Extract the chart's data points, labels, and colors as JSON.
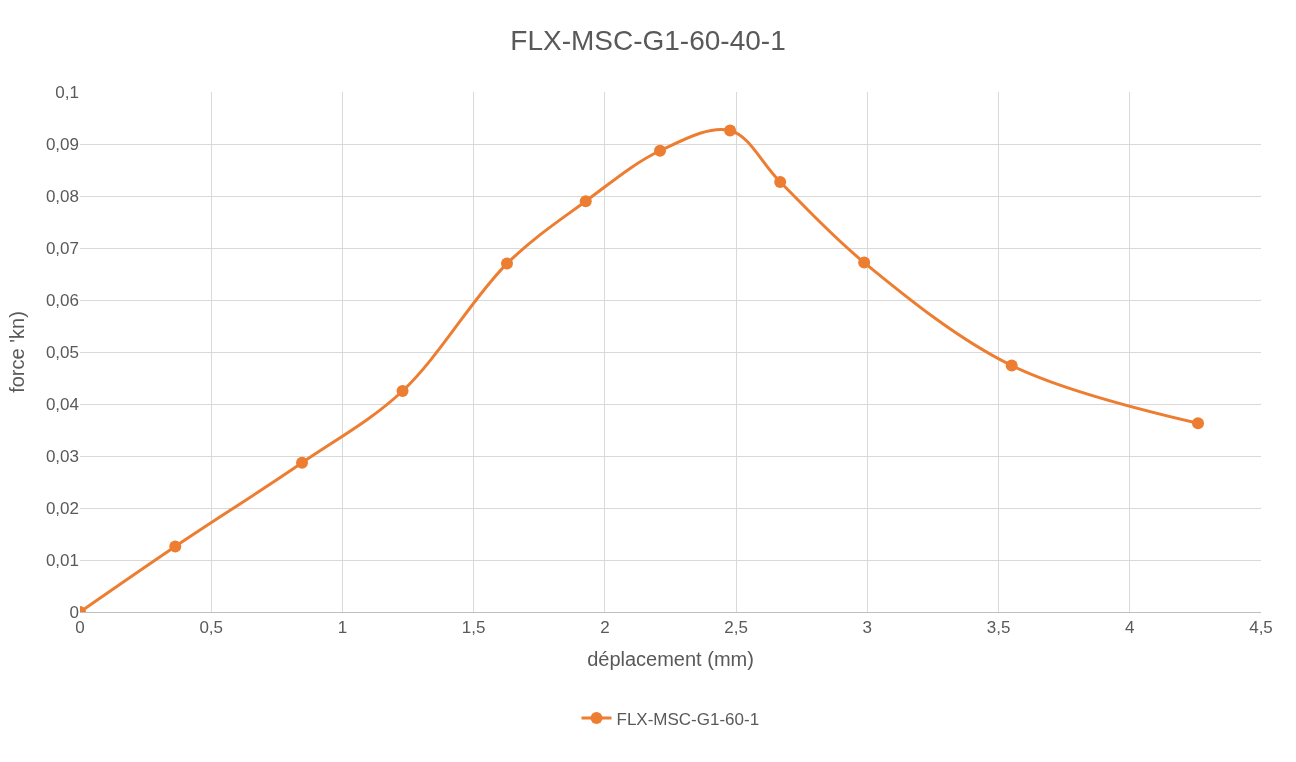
{
  "chart_data": {
    "type": "line",
    "title": "FLX-MSC-G1-60-40-1",
    "xlabel": "déplacement (mm)",
    "ylabel": "force 'kn)",
    "x": [
      0,
      0.363,
      0.846,
      1.229,
      1.627,
      1.927,
      2.21,
      2.477,
      2.668,
      2.988,
      3.55,
      4.26
    ],
    "series": [
      {
        "name": "FLX-MSC-G1-60-1",
        "color": "#ed7d31",
        "values": [
          0,
          0.0126,
          0.0287,
          0.0425,
          0.067,
          0.079,
          0.0887,
          0.0926,
          0.0827,
          0.0672,
          0.0474,
          0.0363
        ]
      }
    ],
    "xlim": [
      0,
      4.5
    ],
    "xticks": [
      0,
      {
        "value": 0.5,
        "label": "0,5"
      },
      1,
      {
        "value": 1.5,
        "label": "1,5"
      },
      2,
      {
        "value": 2.5,
        "label": "2,5"
      },
      3,
      {
        "value": 3.5,
        "label": "3,5"
      },
      4,
      {
        "value": 4.5,
        "label": "4,5"
      }
    ],
    "ylim": [
      0,
      0.1
    ],
    "yticks": [
      0,
      {
        "value": 0.01,
        "label": "0,01"
      },
      {
        "value": 0.02,
        "label": "0,02"
      },
      {
        "value": 0.03,
        "label": "0,03"
      },
      {
        "value": 0.04,
        "label": "0,04"
      },
      {
        "value": 0.05,
        "label": "0,05"
      },
      {
        "value": 0.06,
        "label": "0,06"
      },
      {
        "value": 0.07,
        "label": "0,07"
      },
      {
        "value": 0.08,
        "label": "0,08"
      },
      {
        "value": 0.09,
        "label": "0,09"
      },
      {
        "value": 0.1,
        "label": "0,1"
      }
    ],
    "grid": true,
    "legend": "bottom",
    "marker": "circle",
    "line_style": "solid"
  }
}
